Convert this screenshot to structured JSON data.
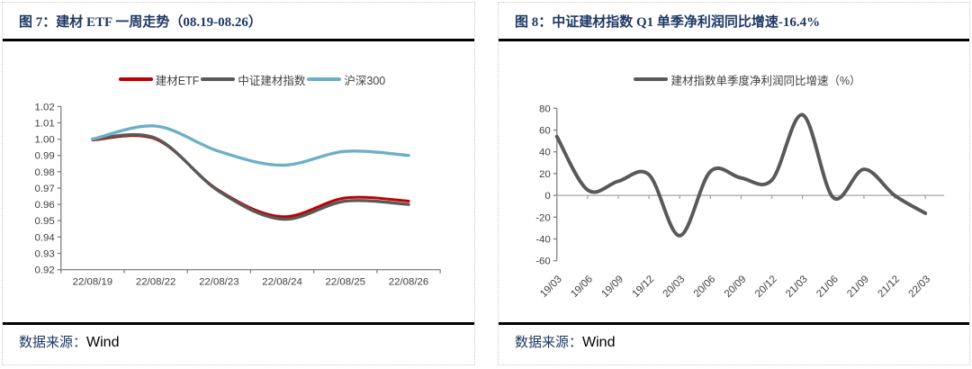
{
  "panels": [
    {
      "title": "图 7：建材 ETF 一周走势（08.19-08.26）",
      "source_label": "数据来源：",
      "source_value": "Wind"
    },
    {
      "title": "图 8：中证建材指数 Q1 单季净利润同比增速-16.4%",
      "source_label": "数据来源：",
      "source_value": "Wind"
    }
  ],
  "colors": {
    "title": "#1F3864",
    "rule": "#000000",
    "axis": "#808080",
    "tick_label": "#404040",
    "zero_line": "#A6A6A6",
    "series_red": "#C00000",
    "series_gray": "#595959",
    "series_blue": "#6EAFC8"
  },
  "chart_data": [
    {
      "type": "line",
      "title": "建材 ETF 一周走势（08.19-08.26）",
      "categories": [
        "22/08/19",
        "22/08/22",
        "22/08/23",
        "22/08/24",
        "22/08/25",
        "22/08/26"
      ],
      "series": [
        {
          "name": "建材ETF",
          "color": "#C00000",
          "values": [
            0.9995,
            1.0,
            0.9685,
            0.9525,
            0.964,
            0.962
          ]
        },
        {
          "name": "中证建材指数",
          "color": "#595959",
          "values": [
            1.0,
            1.0005,
            0.968,
            0.951,
            0.962,
            0.96
          ]
        },
        {
          "name": "沪深300",
          "color": "#6EAFC8",
          "values": [
            1.0,
            1.008,
            0.9925,
            0.984,
            0.9925,
            0.99
          ]
        }
      ],
      "ylim": [
        0.92,
        1.02
      ],
      "ytick_step": 0.01,
      "y_decimals": 2,
      "grid": false,
      "legend_position": "top",
      "xlabel": "",
      "ylabel": ""
    },
    {
      "type": "line",
      "title": "中证建材指数 Q1 单季净利润同比增速-16.4%",
      "categories": [
        "19/03",
        "19/06",
        "19/09",
        "19/12",
        "20/03",
        "20/06",
        "20/09",
        "20/12",
        "21/03",
        "21/06",
        "21/09",
        "21/12",
        "22/03"
      ],
      "series": [
        {
          "name": "建材指数单季度净利润同比增速（%）",
          "color": "#595959",
          "values": [
            54,
            5,
            13,
            19,
            -37,
            22,
            16,
            14,
            74,
            -2,
            24,
            0,
            -16.4
          ]
        }
      ],
      "ylim": [
        -60,
        80
      ],
      "ytick_step": 20,
      "y_decimals": 0,
      "grid": false,
      "legend_position": "top",
      "xlabel": "",
      "ylabel": ""
    }
  ]
}
